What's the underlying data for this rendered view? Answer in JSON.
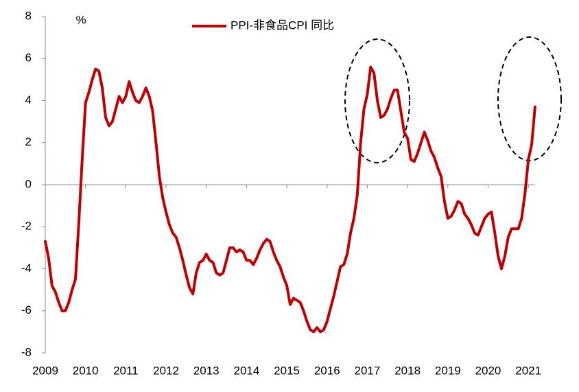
{
  "chart_data": {
    "type": "line",
    "y_unit": "%",
    "categories": [
      "2009",
      null,
      null,
      null,
      null,
      null,
      null,
      null,
      null,
      null,
      null,
      null,
      "2010",
      null,
      null,
      null,
      null,
      null,
      null,
      null,
      null,
      null,
      null,
      null,
      "2011",
      null,
      null,
      null,
      null,
      null,
      null,
      null,
      null,
      null,
      null,
      null,
      "2012",
      null,
      null,
      null,
      null,
      null,
      null,
      null,
      null,
      null,
      null,
      null,
      "2013",
      null,
      null,
      null,
      null,
      null,
      null,
      null,
      null,
      null,
      null,
      null,
      "2014",
      null,
      null,
      null,
      null,
      null,
      null,
      null,
      null,
      null,
      null,
      null,
      "2015",
      null,
      null,
      null,
      null,
      null,
      null,
      null,
      null,
      null,
      null,
      null,
      "2016",
      null,
      null,
      null,
      null,
      null,
      null,
      null,
      null,
      null,
      null,
      null,
      "2017",
      null,
      null,
      null,
      null,
      null,
      null,
      null,
      null,
      null,
      null,
      null,
      "2018",
      null,
      null,
      null,
      null,
      null,
      null,
      null,
      null,
      null,
      null,
      null,
      "2019",
      null,
      null,
      null,
      null,
      null,
      null,
      null,
      null,
      null,
      null,
      null,
      "2020",
      null,
      null,
      null,
      null,
      null,
      null,
      null,
      null,
      null,
      null,
      null,
      "2021",
      null,
      null
    ],
    "series": [
      {
        "name": "PPI-非食品CPI 同比",
        "color": "#c00000",
        "values": [
          -2.7,
          -3.5,
          -4.8,
          -5.1,
          -5.6,
          -6.0,
          -6.0,
          -5.6,
          -5.0,
          -4.5,
          -1.8,
          1.2,
          3.9,
          4.4,
          5.0,
          5.5,
          5.4,
          4.6,
          3.2,
          2.8,
          3.0,
          3.6,
          4.2,
          3.9,
          4.2,
          4.9,
          4.4,
          4.0,
          3.9,
          4.2,
          4.6,
          4.2,
          3.5,
          2.0,
          0.4,
          -0.6,
          -1.3,
          -1.9,
          -2.3,
          -2.5,
          -3.0,
          -3.6,
          -4.3,
          -4.9,
          -5.2,
          -4.2,
          -3.7,
          -3.6,
          -3.3,
          -3.6,
          -3.7,
          -4.2,
          -4.3,
          -4.2,
          -3.6,
          -3.0,
          -3.0,
          -3.2,
          -3.1,
          -3.2,
          -3.6,
          -3.6,
          -3.8,
          -3.5,
          -3.1,
          -2.8,
          -2.6,
          -2.7,
          -3.2,
          -3.6,
          -3.9,
          -4.4,
          -4.8,
          -5.7,
          -5.4,
          -5.5,
          -5.6,
          -6.0,
          -6.5,
          -6.9,
          -7.0,
          -6.8,
          -7.0,
          -6.9,
          -6.5,
          -5.9,
          -5.3,
          -4.6,
          -3.9,
          -3.8,
          -3.3,
          -2.3,
          -1.6,
          -0.5,
          2.0,
          3.6,
          4.3,
          5.6,
          5.3,
          4.0,
          3.2,
          3.3,
          3.6,
          4.1,
          4.5,
          4.5,
          3.5,
          2.5,
          2.2,
          1.2,
          1.1,
          1.5,
          2.0,
          2.5,
          2.1,
          1.6,
          1.3,
          0.8,
          0.4,
          -0.8,
          -1.6,
          -1.5,
          -1.2,
          -0.8,
          -0.9,
          -1.4,
          -1.6,
          -1.9,
          -2.3,
          -2.4,
          -2.0,
          -1.6,
          -1.4,
          -1.3,
          -2.3,
          -3.4,
          -4.0,
          -3.4,
          -2.5,
          -2.1,
          -2.1,
          -2.1,
          -1.6,
          -0.4,
          1.2,
          1.9,
          3.7
        ]
      }
    ],
    "ylim": [
      -8,
      8
    ],
    "yticks": [
      -8,
      -6,
      -4,
      -2,
      0,
      2,
      4,
      6,
      8
    ],
    "grid": false
  }
}
